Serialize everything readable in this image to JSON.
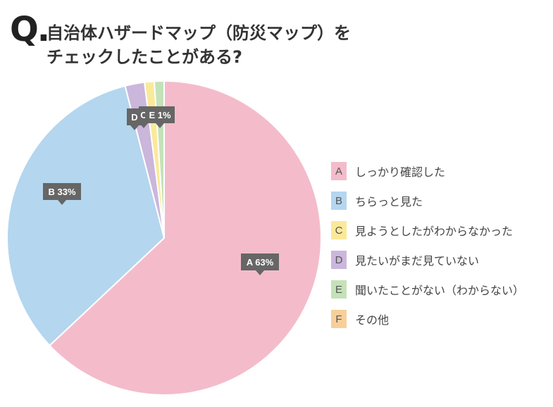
{
  "header": {
    "mark": "Q.",
    "title_line1": "自治体ハザードマップ（防災マップ）を",
    "title_line2": "チェックしたことがある?"
  },
  "chart_data": {
    "type": "pie",
    "title": "自治体ハザードマップ（防災マップ）をチェックしたことがある?",
    "slices": [
      {
        "key": "A",
        "label": "しっかり確認した",
        "value": 63,
        "color": "#f4bccb",
        "tooltip": "A 63%"
      },
      {
        "key": "B",
        "label": "ちらっと見た",
        "value": 33,
        "color": "#b4d6ef",
        "tooltip": "B 33%"
      },
      {
        "key": "C",
        "label": "見ようとしたがわからなかった",
        "value": 1,
        "color": "#fbe99a",
        "tooltip": "C"
      },
      {
        "key": "D",
        "label": "見たいがまだ見ていない",
        "value": 2,
        "color": "#cbb6dc",
        "tooltip": "D"
      },
      {
        "key": "E",
        "label": "聞いたことがない（わからない）",
        "value": 1,
        "color": "#c4e2b8",
        "tooltip": "E 1%"
      },
      {
        "key": "F",
        "label": "その他",
        "value": 0,
        "color": "#f8cf9a",
        "tooltip": ""
      }
    ],
    "legend_position": "right"
  }
}
